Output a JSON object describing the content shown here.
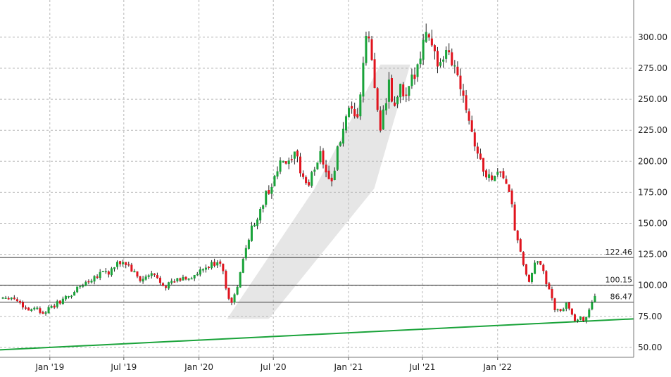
{
  "chart_data": {
    "type": "candlestick",
    "title": "",
    "xlabel": "",
    "ylabel": "",
    "ylim": [
      42,
      330
    ],
    "xlim": [
      "2018-09-01",
      "2022-11-30"
    ],
    "grid": true,
    "y_ticks": [
      "50.00",
      "75.00",
      "100.00",
      "125.00",
      "150.00",
      "175.00",
      "200.00",
      "225.00",
      "250.00",
      "275.00",
      "300.00"
    ],
    "x_ticks": [
      {
        "date": "2019-01-01",
        "label": "Jan '19"
      },
      {
        "date": "2019-07-01",
        "label": "Jul '19"
      },
      {
        "date": "2020-01-01",
        "label": "Jan '20"
      },
      {
        "date": "2020-07-01",
        "label": "Jul '20"
      },
      {
        "date": "2021-01-01",
        "label": "Jan '21"
      },
      {
        "date": "2021-07-01",
        "label": "Jul '21"
      },
      {
        "date": "2022-01-01",
        "label": "Jan '22"
      }
    ],
    "horizontal_levels": [
      {
        "value": 122.46,
        "label": "122.46"
      },
      {
        "value": 100.15,
        "label": "100.15"
      },
      {
        "value": 86.47,
        "label": "86.47"
      }
    ],
    "trendline": {
      "start": [
        "2018-09-01",
        48
      ],
      "end": [
        "2022-11-30",
        73
      ],
      "color": "#1aa33a"
    },
    "colors": {
      "up": "#1aa33a",
      "down": "#e0141e",
      "grid": "#b8b8b8",
      "level": "#333333",
      "band": "#d8d8d8"
    },
    "channel_band": [
      [
        "2020-03-10",
        73
      ],
      [
        "2020-06-20",
        73
      ],
      [
        "2021-03-05",
        178
      ],
      [
        "2021-06-01",
        278
      ],
      [
        "2021-03-20",
        278
      ],
      [
        "2020-10-10",
        178
      ],
      [
        "2020-03-10",
        73
      ]
    ],
    "close_path": [
      [
        "2018-09-01",
        90
      ],
      [
        "2018-09-20",
        91
      ],
      [
        "2018-10-10",
        89
      ],
      [
        "2018-10-25",
        84
      ],
      [
        "2018-11-10",
        80
      ],
      [
        "2018-11-25",
        83
      ],
      [
        "2018-12-10",
        78
      ],
      [
        "2018-12-25",
        80
      ],
      [
        "2019-01-10",
        83
      ],
      [
        "2019-01-25",
        87
      ],
      [
        "2019-02-10",
        90
      ],
      [
        "2019-02-25",
        93
      ],
      [
        "2019-03-10",
        98
      ],
      [
        "2019-03-25",
        101
      ],
      [
        "2019-04-10",
        105
      ],
      [
        "2019-04-25",
        108
      ],
      [
        "2019-05-10",
        112
      ],
      [
        "2019-05-25",
        110
      ],
      [
        "2019-06-10",
        115
      ],
      [
        "2019-06-25",
        119
      ],
      [
        "2019-07-10",
        117
      ],
      [
        "2019-07-25",
        110
      ],
      [
        "2019-08-10",
        104
      ],
      [
        "2019-08-25",
        106
      ],
      [
        "2019-09-10",
        109
      ],
      [
        "2019-09-25",
        104
      ],
      [
        "2019-10-10",
        100
      ],
      [
        "2019-10-25",
        102
      ],
      [
        "2019-11-10",
        104
      ],
      [
        "2019-11-25",
        106
      ],
      [
        "2019-12-10",
        106
      ],
      [
        "2019-12-25",
        108
      ],
      [
        "2020-01-10",
        112
      ],
      [
        "2020-01-25",
        115
      ],
      [
        "2020-02-10",
        118
      ],
      [
        "2020-02-20",
        122
      ],
      [
        "2020-03-01",
        108
      ],
      [
        "2020-03-10",
        95
      ],
      [
        "2020-03-20",
        85
      ],
      [
        "2020-03-31",
        94
      ],
      [
        "2020-04-15",
        115
      ],
      [
        "2020-04-30",
        138
      ],
      [
        "2020-05-15",
        150
      ],
      [
        "2020-05-31",
        160
      ],
      [
        "2020-06-15",
        175
      ],
      [
        "2020-06-30",
        182
      ],
      [
        "2020-07-10",
        192
      ],
      [
        "2020-07-25",
        200
      ],
      [
        "2020-08-10",
        196
      ],
      [
        "2020-08-25",
        205
      ],
      [
        "2020-09-10",
        188
      ],
      [
        "2020-09-25",
        180
      ],
      [
        "2020-10-10",
        195
      ],
      [
        "2020-10-25",
        208
      ],
      [
        "2020-11-10",
        190
      ],
      [
        "2020-11-20",
        182
      ],
      [
        "2020-12-05",
        208
      ],
      [
        "2020-12-20",
        228
      ],
      [
        "2021-01-05",
        240
      ],
      [
        "2021-01-20",
        230
      ],
      [
        "2021-02-01",
        260
      ],
      [
        "2021-02-10",
        292
      ],
      [
        "2021-02-20",
        302
      ],
      [
        "2021-02-28",
        275
      ],
      [
        "2021-03-10",
        248
      ],
      [
        "2021-03-20",
        230
      ],
      [
        "2021-04-01",
        245
      ],
      [
        "2021-04-10",
        260
      ],
      [
        "2021-04-25",
        240
      ],
      [
        "2021-05-05",
        262
      ],
      [
        "2021-05-20",
        248
      ],
      [
        "2021-05-31",
        258
      ],
      [
        "2021-06-10",
        270
      ],
      [
        "2021-06-25",
        288
      ],
      [
        "2021-07-05",
        298
      ],
      [
        "2021-07-15",
        306
      ],
      [
        "2021-07-25",
        295
      ],
      [
        "2021-08-05",
        280
      ],
      [
        "2021-08-20",
        275
      ],
      [
        "2021-09-01",
        290
      ],
      [
        "2021-09-10",
        282
      ],
      [
        "2021-09-25",
        270
      ],
      [
        "2021-10-10",
        255
      ],
      [
        "2021-10-25",
        232
      ],
      [
        "2021-11-10",
        210
      ],
      [
        "2021-11-25",
        195
      ],
      [
        "2021-12-10",
        186
      ],
      [
        "2021-12-25",
        190
      ],
      [
        "2022-01-10",
        192
      ],
      [
        "2022-01-25",
        180
      ],
      [
        "2022-02-05",
        162
      ],
      [
        "2022-02-15",
        140
      ],
      [
        "2022-02-28",
        122
      ],
      [
        "2022-03-10",
        112
      ],
      [
        "2022-03-20",
        100
      ],
      [
        "2022-03-31",
        115
      ],
      [
        "2022-04-10",
        120
      ],
      [
        "2022-04-20",
        118
      ],
      [
        "2022-04-30",
        102
      ],
      [
        "2022-05-10",
        92
      ],
      [
        "2022-05-20",
        82
      ],
      [
        "2022-05-31",
        78
      ],
      [
        "2022-06-10",
        80
      ],
      [
        "2022-06-20",
        86
      ],
      [
        "2022-07-01",
        78
      ],
      [
        "2022-07-10",
        72
      ],
      [
        "2022-07-20",
        74
      ],
      [
        "2022-07-30",
        71
      ],
      [
        "2022-08-10",
        78
      ],
      [
        "2022-08-20",
        88
      ],
      [
        "2022-08-30",
        90
      ]
    ]
  }
}
